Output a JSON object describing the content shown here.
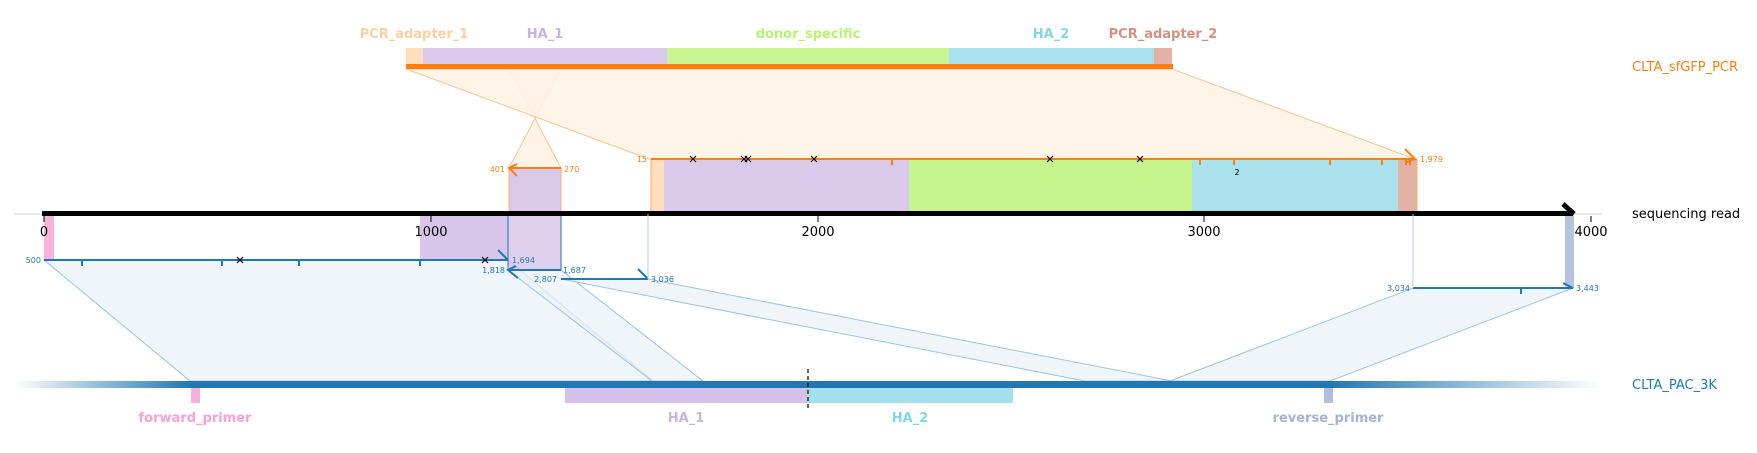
{
  "references": {
    "donor": {
      "label": "CLTA_sfGFP_PCR",
      "color": "#ff7f0e"
    },
    "target": {
      "label": "CLTA_PAC_3K",
      "color": "#1f77b4"
    },
    "read": {
      "label": "sequencing read",
      "color": "#000000"
    }
  },
  "donor_features": [
    {
      "name": "PCR_adapter_1",
      "color": "#fdd0a2"
    },
    {
      "name": "HA_1",
      "color": "#c9b3e3"
    },
    {
      "name": "donor_specific",
      "color": "#b7f36f"
    },
    {
      "name": "HA_2",
      "color": "#84d6e6"
    },
    {
      "name": "PCR_adapter_2",
      "color": "#d7907f"
    }
  ],
  "target_features": [
    {
      "name": "forward_primer",
      "color": "#f7a1d5"
    },
    {
      "name": "HA_1",
      "color": "#c9b3e3"
    },
    {
      "name": "HA_2",
      "color": "#84d6e6"
    },
    {
      "name": "reverse_primer",
      "color": "#a4b4d6"
    }
  ],
  "read_axis": {
    "ticks": [
      "0",
      "1000",
      "2000",
      "3000",
      "4000"
    ]
  },
  "alignments": {
    "target_1": {
      "start": "500",
      "end": "1,694"
    },
    "target_2": {
      "start": "1,818",
      "end": "1,687"
    },
    "target_3": {
      "start": "2,807",
      "end": "3,036"
    },
    "target_4": {
      "start": "3,034",
      "end": "3,443"
    },
    "donor_1": {
      "start": "401",
      "end": "270"
    },
    "donor_2": {
      "start": "15",
      "end": "1,979"
    },
    "donor_insertion_count": "2"
  }
}
